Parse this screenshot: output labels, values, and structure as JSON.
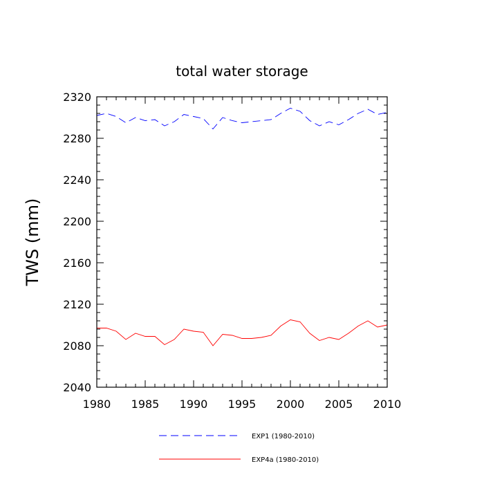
{
  "chart_data": {
    "type": "line",
    "title": "total water storage",
    "xlabel": "",
    "ylabel": "TWS  (mm)",
    "xlim": [
      1980,
      2010
    ],
    "ylim": [
      2040,
      2320
    ],
    "x_ticks": [
      1980,
      1985,
      1990,
      1995,
      2000,
      2005,
      2010
    ],
    "y_ticks": [
      2040,
      2080,
      2120,
      2160,
      2200,
      2240,
      2280,
      2320
    ],
    "x": [
      1980,
      1981,
      1982,
      1983,
      1984,
      1985,
      1986,
      1987,
      1988,
      1989,
      1990,
      1991,
      1992,
      1993,
      1994,
      1995,
      1996,
      1997,
      1998,
      1999,
      2000,
      2001,
      2002,
      2003,
      2004,
      2005,
      2006,
      2007,
      2008,
      2009,
      2010
    ],
    "series": [
      {
        "name": "EXP1 (1980-2010)",
        "color": "#0000ff",
        "dash": "dashed",
        "values": [
          2302,
          2304,
          2301,
          2295,
          2300,
          2297,
          2298,
          2292,
          2296,
          2303,
          2301,
          2299,
          2289,
          2300,
          2297,
          2295,
          2296,
          2297,
          2298,
          2304,
          2309,
          2306,
          2297,
          2292,
          2296,
          2293,
          2298,
          2304,
          2308,
          2303,
          2305
        ]
      },
      {
        "name": "EXP4a (1980-2010)",
        "color": "#ff0000",
        "dash": "solid",
        "values": [
          2097,
          2097,
          2094,
          2086,
          2092,
          2089,
          2089,
          2081,
          2086,
          2096,
          2094,
          2093,
          2080,
          2091,
          2090,
          2087,
          2087,
          2088,
          2090,
          2099,
          2105,
          2103,
          2092,
          2085,
          2088,
          2086,
          2092,
          2099,
          2104,
          2098,
          2100
        ]
      }
    ],
    "grid": false,
    "legend_position": "bottom"
  }
}
